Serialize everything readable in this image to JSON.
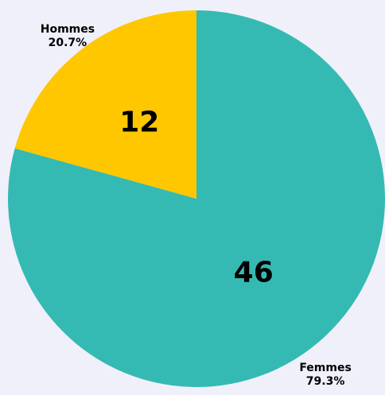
{
  "chart_data": {
    "type": "pie",
    "categories": [
      "Femmes",
      "Hommes"
    ],
    "values": [
      46,
      12
    ],
    "percent_labels": [
      "79.3%",
      "20.7%"
    ],
    "colors": [
      "#35bab3",
      "#ffc700"
    ]
  }
}
